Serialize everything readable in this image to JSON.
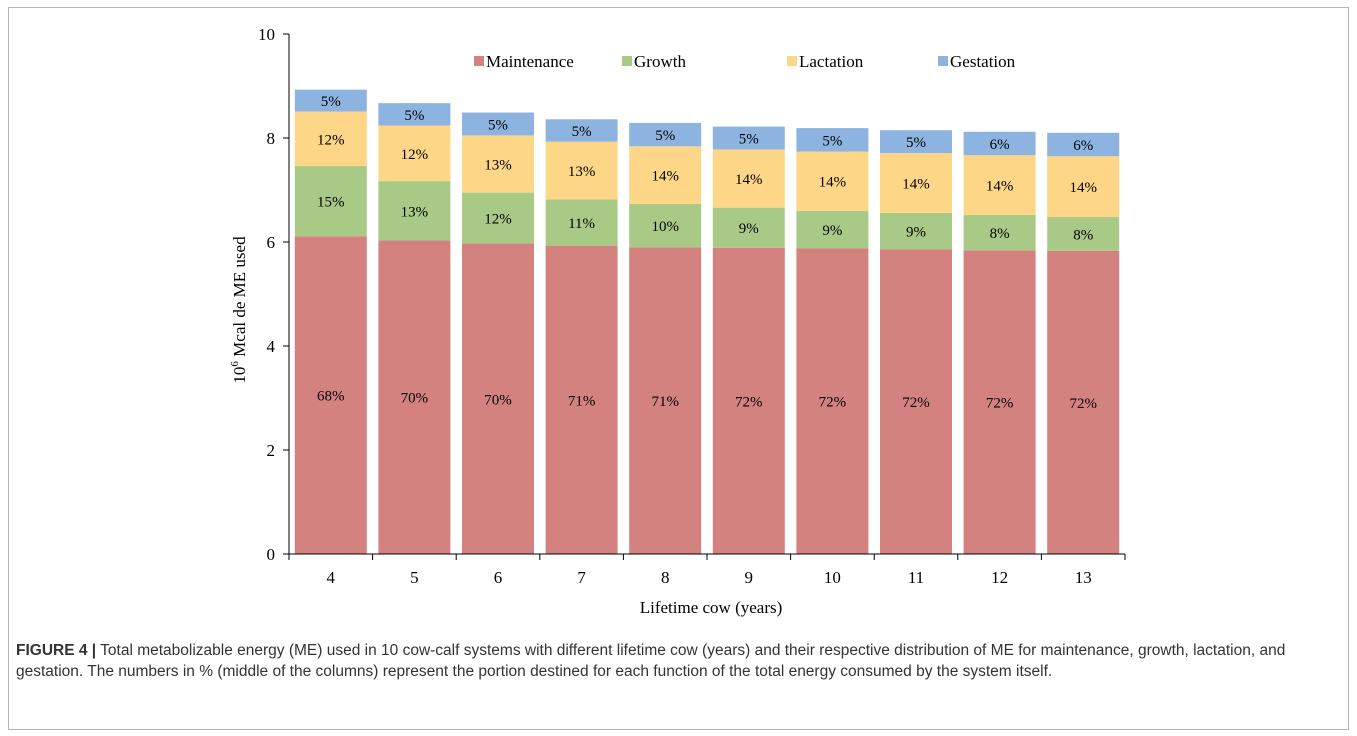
{
  "chart_data": {
    "type": "bar",
    "stacked": true,
    "categories": [
      "4",
      "5",
      "6",
      "7",
      "8",
      "9",
      "10",
      "11",
      "12",
      "13"
    ],
    "xlabel": "Lifetime cow (years)",
    "ylabel_base": "10",
    "ylabel_sup": "6",
    "ylabel_rest": " Mcal de ME used",
    "ylim": [
      0,
      10
    ],
    "yticks": [
      0,
      2,
      4,
      6,
      8,
      10
    ],
    "legend_position": "top",
    "series": [
      {
        "name": "Maintenance",
        "color": "#d38280",
        "values": [
          6.11,
          6.03,
          5.97,
          5.93,
          5.9,
          5.89,
          5.88,
          5.86,
          5.84,
          5.83
        ],
        "labels": [
          "68%",
          "70%",
          "70%",
          "71%",
          "71%",
          "72%",
          "72%",
          "72%",
          "72%",
          "72%"
        ]
      },
      {
        "name": "Growth",
        "color": "#a9c987",
        "values": [
          1.35,
          1.14,
          0.98,
          0.89,
          0.83,
          0.77,
          0.72,
          0.7,
          0.68,
          0.65
        ],
        "labels": [
          "15%",
          "13%",
          "12%",
          "11%",
          "10%",
          "9%",
          "9%",
          "9%",
          "8%",
          "8%"
        ]
      },
      {
        "name": "Lactation",
        "color": "#fdd687",
        "values": [
          1.05,
          1.07,
          1.1,
          1.11,
          1.11,
          1.12,
          1.14,
          1.15,
          1.15,
          1.17
        ],
        "labels": [
          "12%",
          "12%",
          "13%",
          "13%",
          "14%",
          "14%",
          "14%",
          "14%",
          "14%",
          "14%"
        ]
      },
      {
        "name": "Gestation",
        "color": "#8db4e0",
        "values": [
          0.42,
          0.43,
          0.44,
          0.43,
          0.45,
          0.44,
          0.45,
          0.44,
          0.45,
          0.45
        ],
        "labels": [
          "5%",
          "5%",
          "5%",
          "5%",
          "5%",
          "5%",
          "5%",
          "5%",
          "6%",
          "6%"
        ]
      }
    ]
  },
  "caption": {
    "label": "FIGURE 4 |",
    "text": " Total metabolizable energy (ME) used in 10 cow-calf systems with different lifetime cow (years) and their respective distribution of ME for maintenance, growth, lactation, and gestation. The numbers in % (middle of the columns) represent the portion destined for each function of the total energy consumed by the system itself."
  }
}
